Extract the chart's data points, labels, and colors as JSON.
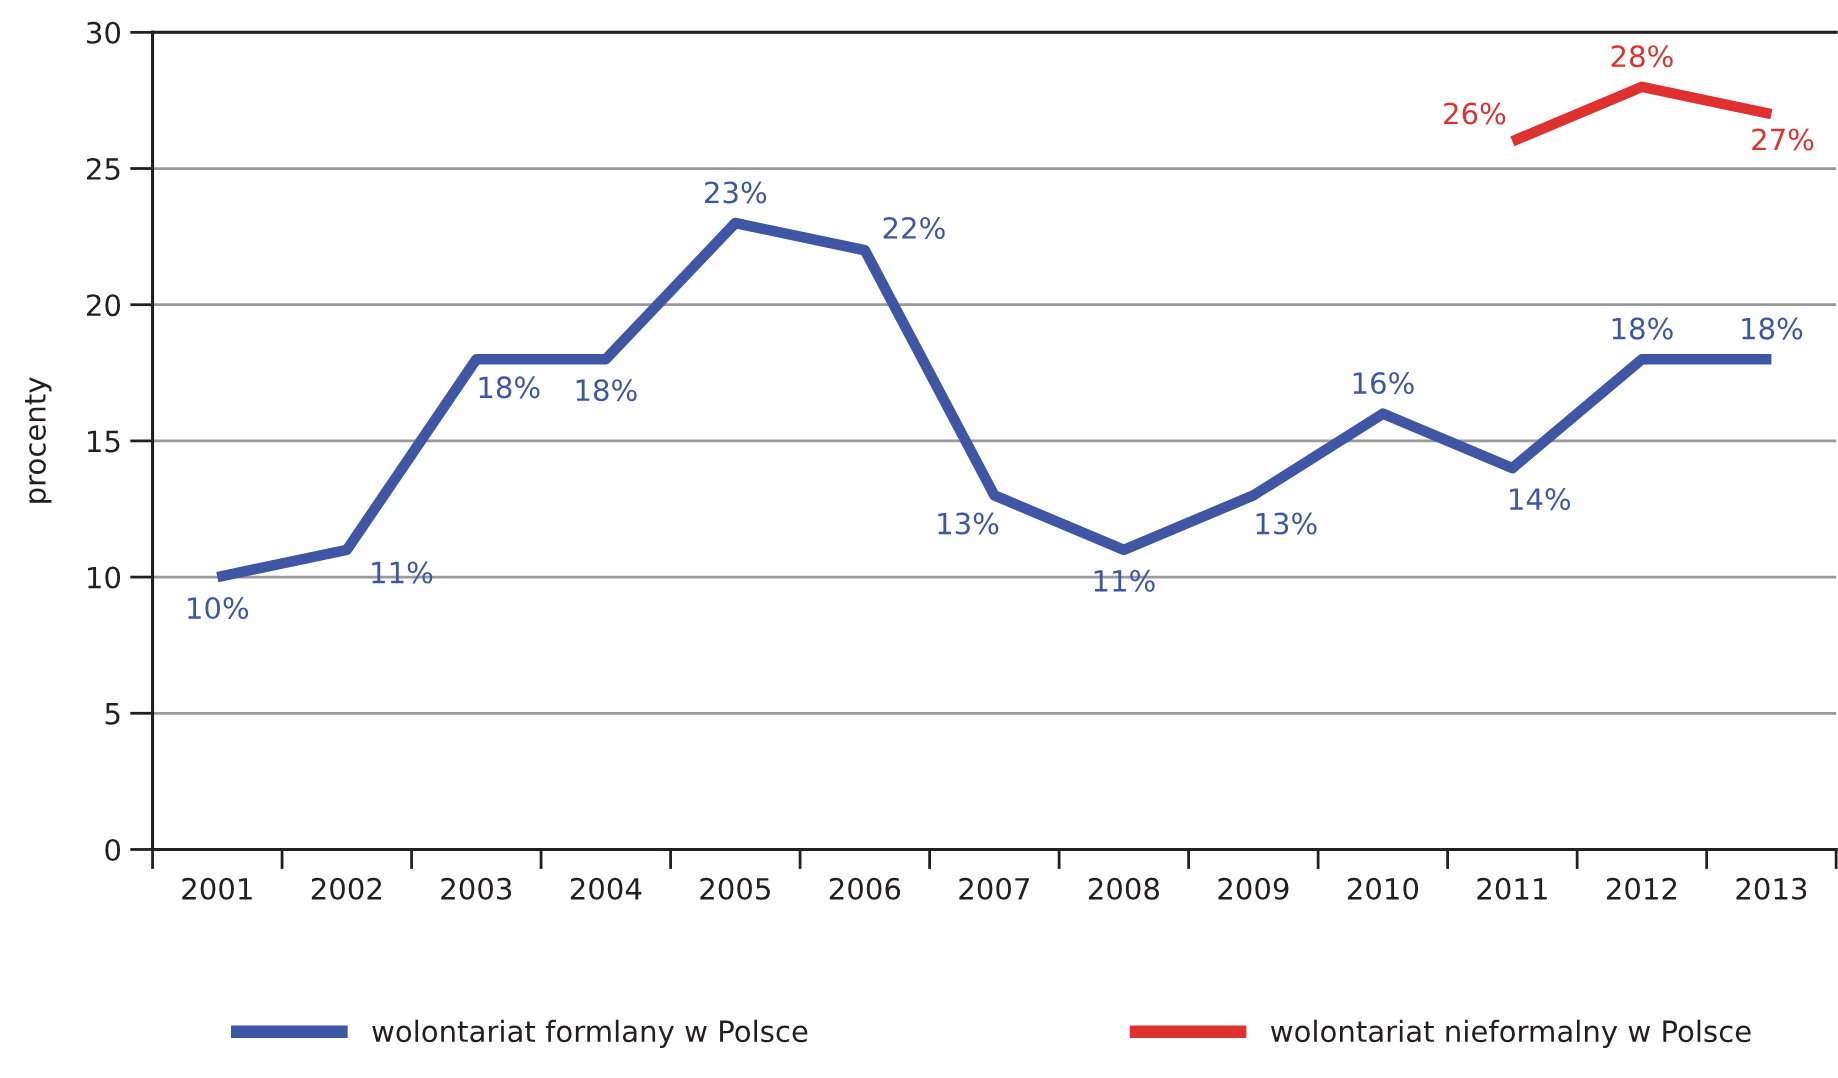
{
  "chart_data": {
    "type": "line",
    "ylabel": "procenty",
    "categories": [
      "2001",
      "2002",
      "2003",
      "2004",
      "2005",
      "2006",
      "2007",
      "2008",
      "2009",
      "2010",
      "2011",
      "2012",
      "2013"
    ],
    "series": [
      {
        "name": "wolontariat formlany w Polsce",
        "color": "#3f56a4",
        "values": [
          10,
          11,
          18,
          18,
          23,
          22,
          13,
          11,
          13,
          16,
          14,
          18,
          18
        ],
        "value_labels": [
          "10%",
          "11%",
          "18%",
          "18%",
          "23%",
          "22%",
          "13%",
          "11%",
          "13%",
          "16%",
          "14%",
          "18%",
          "18%"
        ]
      },
      {
        "name": "wolontariat nieformalny w Polsce",
        "color": "#e03131",
        "values": [
          null,
          null,
          null,
          null,
          null,
          null,
          null,
          null,
          null,
          null,
          26,
          28,
          27
        ],
        "value_labels": [
          null,
          null,
          null,
          null,
          null,
          null,
          null,
          null,
          null,
          null,
          "26%",
          "28%",
          "27%"
        ]
      }
    ],
    "ylim": [
      0,
      30
    ],
    "yticks": [
      0,
      5,
      10,
      15,
      20,
      25,
      30
    ],
    "grid": "y",
    "legend": "bottom",
    "line_style": "solid"
  }
}
